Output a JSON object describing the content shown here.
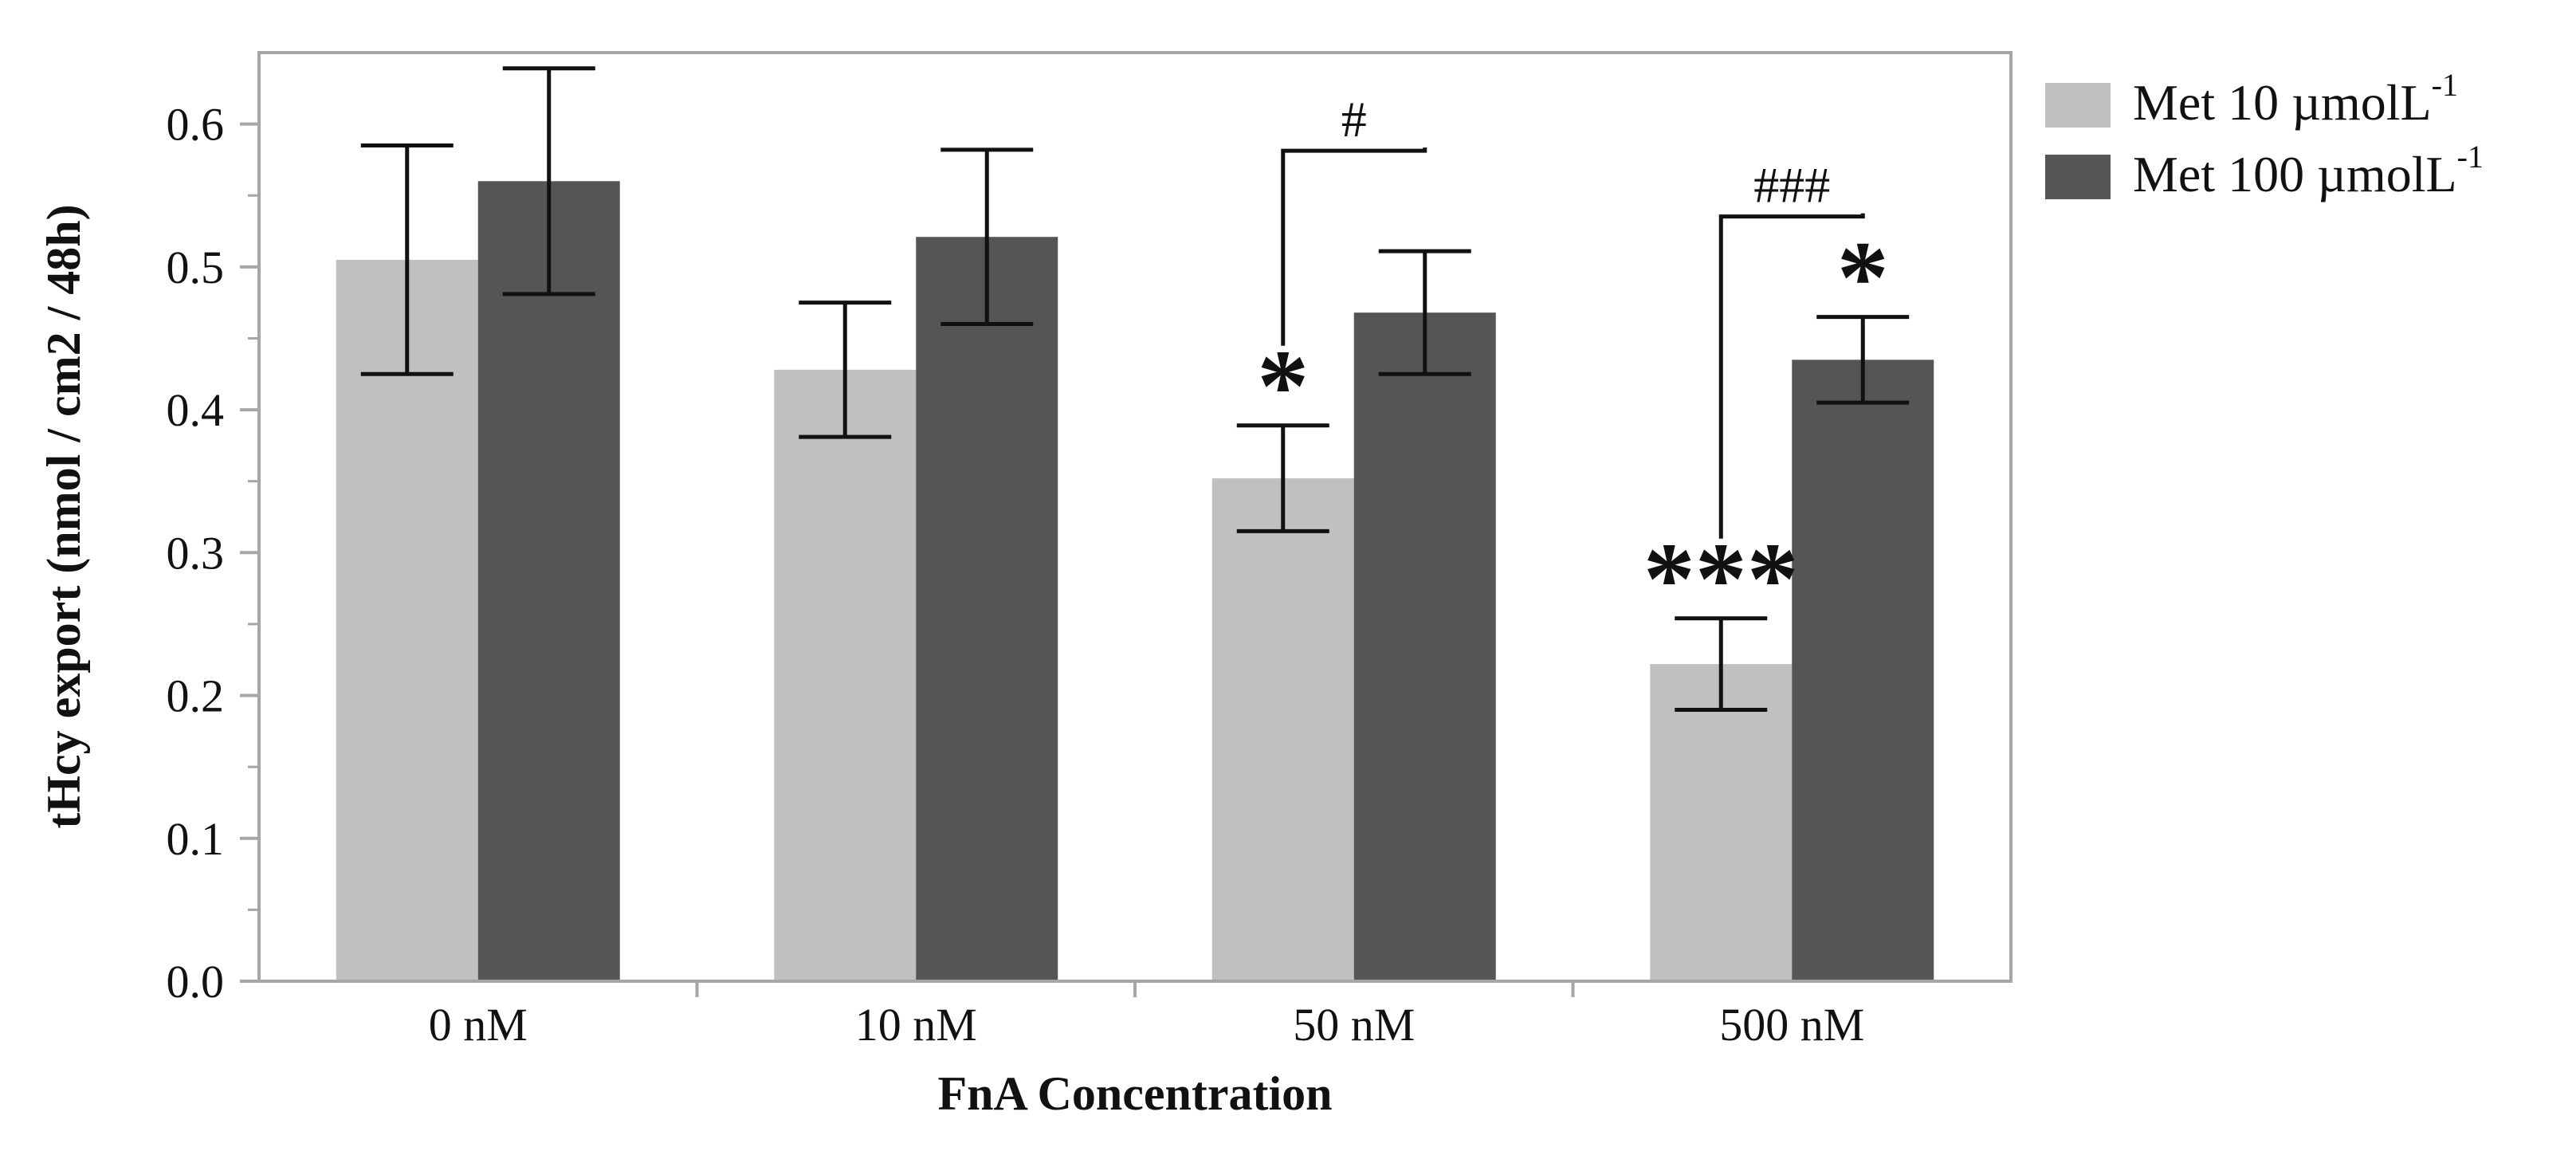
{
  "chart_data": {
    "type": "bar",
    "title": "",
    "xlabel": "FnA Concentration",
    "ylabel": "tHcy export (nmol / cm2 / 48h)",
    "ylim": [
      0,
      0.65
    ],
    "yticks": [
      "0.0",
      "0.1",
      "0.2",
      "0.3",
      "0.4",
      "0.5",
      "0.6"
    ],
    "categories": [
      "0 nM",
      "10 nM",
      "50 nM",
      "500 nM"
    ],
    "series": [
      {
        "name": "Met 10 µmolL",
        "superscript": "-1",
        "color": "#c0c0c0",
        "values": [
          0.505,
          0.428,
          0.352,
          0.222
        ],
        "errors": [
          0.08,
          0.047,
          0.037,
          0.032
        ]
      },
      {
        "name": "Met 100 µmolL",
        "superscript": "-1",
        "color": "#555555",
        "values": [
          0.56,
          0.521,
          0.468,
          0.435
        ],
        "errors": [
          0.079,
          0.061,
          0.043,
          0.03
        ]
      }
    ],
    "legend_position": "top-right-outside",
    "significance_marks": [
      {
        "category": 2,
        "series": 0,
        "label": "*"
      },
      {
        "category": 3,
        "series": 0,
        "label": "***"
      },
      {
        "category": 3,
        "series": 1,
        "label": "*"
      }
    ],
    "comparison_brackets": [
      {
        "category": 2,
        "label": "#"
      },
      {
        "category": 3,
        "label": "###"
      }
    ]
  }
}
